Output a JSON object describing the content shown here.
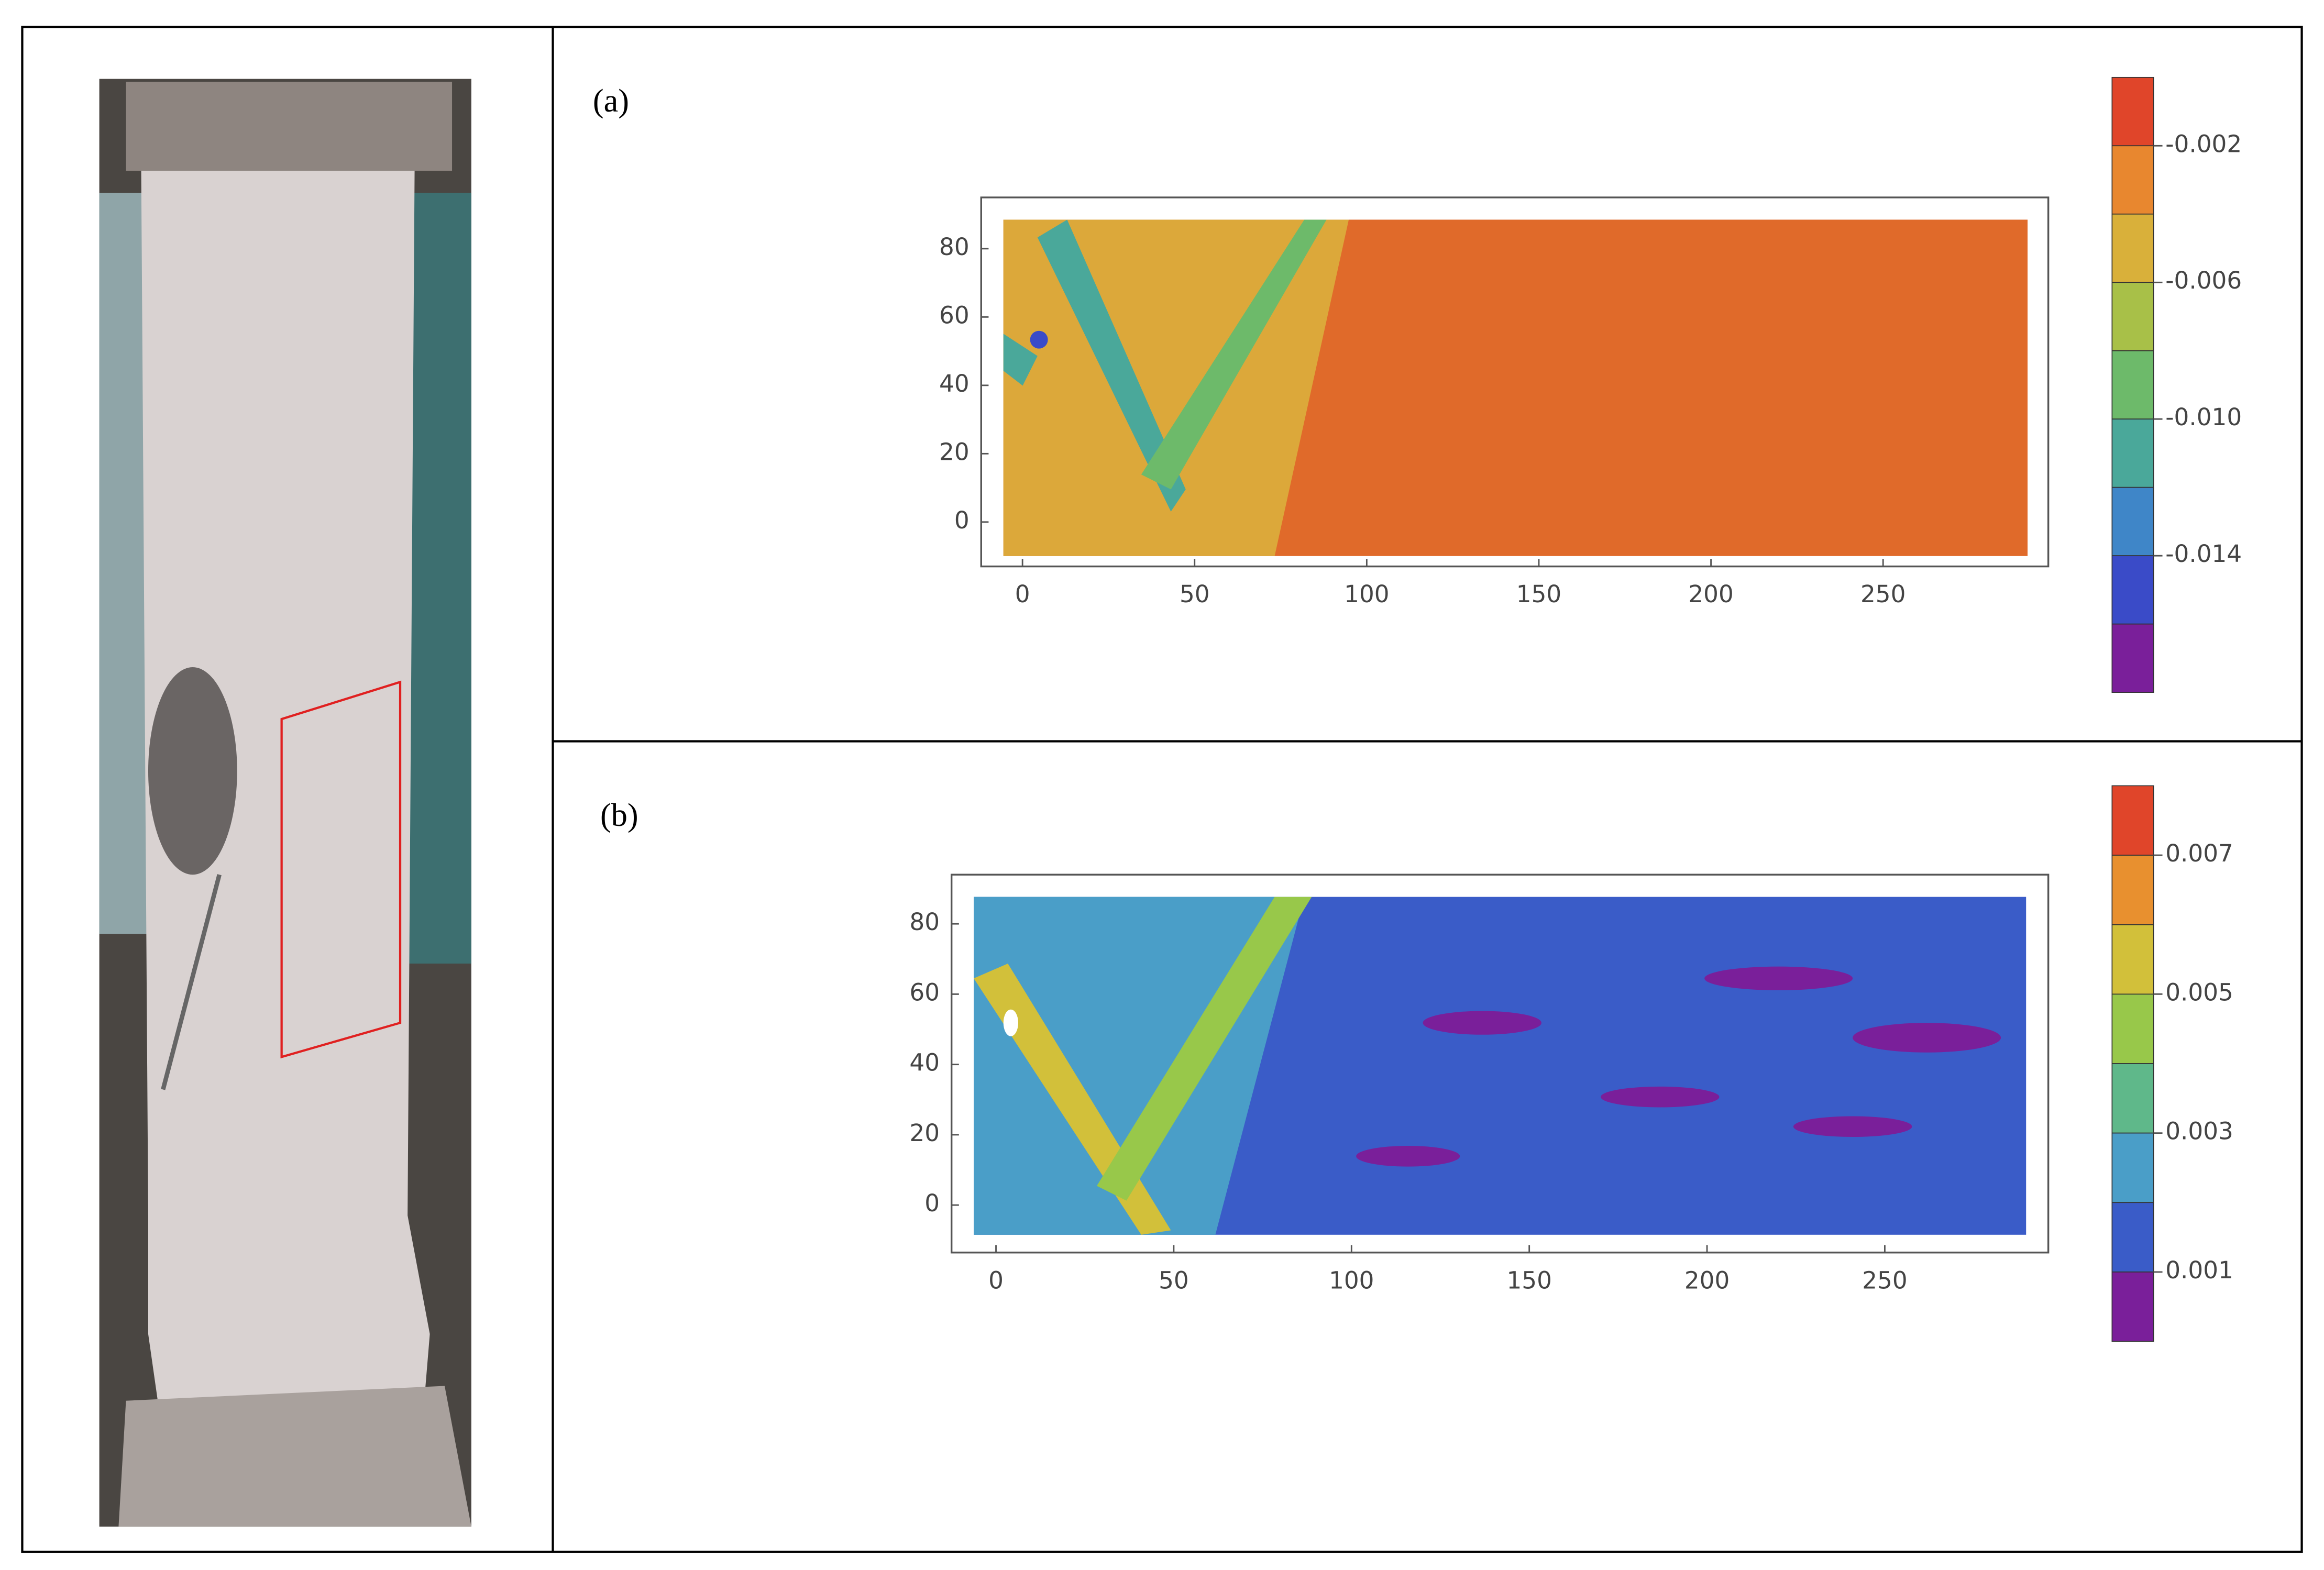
{
  "chart_data": [
    {
      "type": "contour",
      "panel_label": "(a)",
      "xlim": [
        -12,
        298
      ],
      "ylim": [
        -13,
        95
      ],
      "xticks": [
        0,
        50,
        100,
        150,
        200,
        250
      ],
      "yticks": [
        0,
        20,
        40,
        60,
        80
      ],
      "colorbar_lim": [
        -0.018,
        0
      ],
      "colorbar_ticks": [
        -0.002,
        -0.006,
        {
          "value": -0.01,
          "label": "-0.010"
        },
        -0.014
      ],
      "colors": [
        "#e0452a",
        "#e8872f",
        "#d9b03a",
        "#a8c048",
        "#6dba6a",
        "#4aa89a",
        "#3f86c8",
        "#3a4bc8",
        "#7a1f9a"
      ]
    },
    {
      "type": "contour",
      "panel_label": "(b)",
      "xlim": [
        -12.5,
        296
      ],
      "ylim": [
        -13.5,
        94
      ],
      "xticks": [
        0,
        50,
        100,
        150,
        200,
        250
      ],
      "yticks": [
        0,
        20,
        40,
        60,
        80
      ],
      "colorbar_lim": [
        0,
        0.008
      ],
      "colorbar_ticks": [
        0.007,
        0.005,
        0.003,
        0.001
      ],
      "colors": [
        "#e0452a",
        "#e8902f",
        "#d2c03a",
        "#98c84a",
        "#5fb88a",
        "#4a9ec8",
        "#3a5cc8",
        "#7a1f9a"
      ]
    }
  ]
}
